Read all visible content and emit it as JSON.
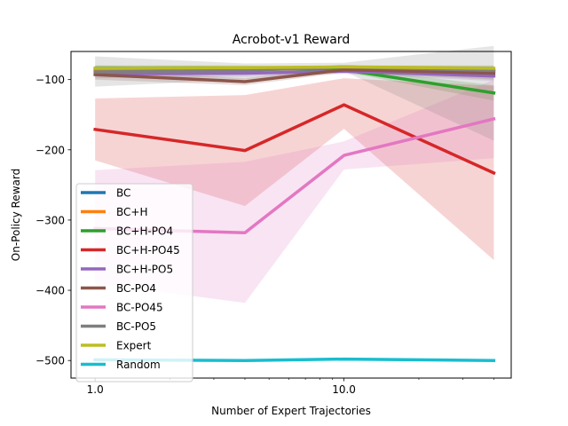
{
  "chart_data": {
    "type": "line",
    "title": "Acrobot-v1 Reward",
    "xlabel": "Number of Expert Trajectories",
    "ylabel": "On-Policy Reward",
    "xscale": "log",
    "xlim": [
      0.8,
      47
    ],
    "ylim": [
      -525,
      -60
    ],
    "x": [
      1,
      4,
      10,
      40
    ],
    "xticks": [
      {
        "value": 1,
        "label": "1.0"
      },
      {
        "value": 10,
        "label": "10.0"
      }
    ],
    "yticks": [
      {
        "value": -100,
        "label": "−100"
      },
      {
        "value": -200,
        "label": "−200"
      },
      {
        "value": -300,
        "label": "−300"
      },
      {
        "value": -400,
        "label": "−400"
      },
      {
        "value": -500,
        "label": "−500"
      }
    ],
    "grid": false,
    "legend_position": "lower-left",
    "series": [
      {
        "name": "BC",
        "color": "#1f77b4",
        "values": [
          -85,
          -85,
          -82,
          -87
        ],
        "lower": [
          -90,
          -88,
          -85,
          -95
        ],
        "upper": [
          -80,
          -82,
          -80,
          -80
        ]
      },
      {
        "name": "BC+H",
        "color": "#ff7f0e",
        "values": [
          -87,
          -86,
          -83,
          -87
        ],
        "lower": [
          -92,
          -90,
          -86,
          -93
        ],
        "upper": [
          -82,
          -82,
          -80,
          -81
        ]
      },
      {
        "name": "BC+H-PO4",
        "color": "#2ca02c",
        "values": [
          -84,
          -83,
          -86,
          -119
        ],
        "lower": [
          -88,
          -86,
          -89,
          -130
        ],
        "upper": [
          -80,
          -80,
          -83,
          -108
        ]
      },
      {
        "name": "BC+H-PO45",
        "color": "#d62728",
        "values": [
          -171,
          -201,
          -136,
          -233
        ],
        "lower": [
          -215,
          -280,
          -170,
          -357
        ],
        "upper": [
          -127,
          -122,
          -98,
          -109
        ]
      },
      {
        "name": "BC+H-PO5",
        "color": "#9467bd",
        "values": [
          -92,
          -91,
          -88,
          -95
        ],
        "lower": [
          -98,
          -96,
          -92,
          -102
        ],
        "upper": [
          -86,
          -86,
          -84,
          -88
        ]
      },
      {
        "name": "BC-PO4",
        "color": "#8c564b",
        "values": [
          -93,
          -103,
          -86,
          -91
        ],
        "lower": [
          -100,
          -108,
          -90,
          -100
        ],
        "upper": [
          -86,
          -98,
          -82,
          -82
        ]
      },
      {
        "name": "BC-PO45",
        "color": "#e377c2",
        "values": [
          -312,
          -318,
          -208,
          -156
        ],
        "lower": [
          -390,
          -418,
          -228,
          -212
        ],
        "upper": [
          -229,
          -217,
          -188,
          -100
        ]
      },
      {
        "name": "BC-PO5",
        "color": "#7f7f7f",
        "values": [
          -89,
          -87,
          -82,
          -87
        ],
        "lower": [
          -110,
          -100,
          -88,
          -187
        ],
        "upper": [
          -67,
          -77,
          -76,
          -52
        ]
      },
      {
        "name": "Expert",
        "color": "#bcbd22",
        "values": [
          -84,
          -83,
          -82,
          -84
        ],
        "lower": [
          -87,
          -85,
          -84,
          -87
        ],
        "upper": [
          -81,
          -81,
          -80,
          -81
        ]
      },
      {
        "name": "Random",
        "color": "#17becf",
        "values": [
          -499,
          -500,
          -498,
          -500
        ],
        "lower": [
          -501,
          -501,
          -500,
          -501
        ],
        "upper": [
          -497,
          -499,
          -496,
          -499
        ]
      }
    ]
  }
}
